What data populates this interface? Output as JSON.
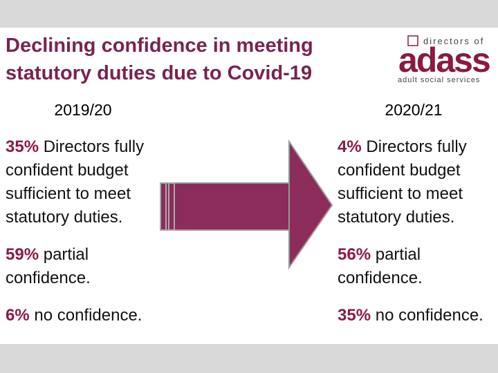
{
  "header": {
    "title": "Declining confidence in meeting statutory duties due to Covid-19",
    "logo": {
      "top": "directors of",
      "name": "adass",
      "tagline": "adult social services"
    }
  },
  "columns": [
    {
      "heading": "2019/20",
      "items": [
        {
          "percent": "35%",
          "text": "Directors fully confident budget sufficient to meet statutory duties."
        },
        {
          "percent": "59%",
          "text": "partial confidence."
        },
        {
          "percent": "6%",
          "text": "no confidence."
        }
      ]
    },
    {
      "heading": "2020/21",
      "items": [
        {
          "percent": "4%",
          "text": "Directors fully confident budget sufficient to meet statutory duties."
        },
        {
          "percent": "56%",
          "text": "partial confidence."
        },
        {
          "percent": "35%",
          "text": "no confidence."
        }
      ]
    }
  ]
}
